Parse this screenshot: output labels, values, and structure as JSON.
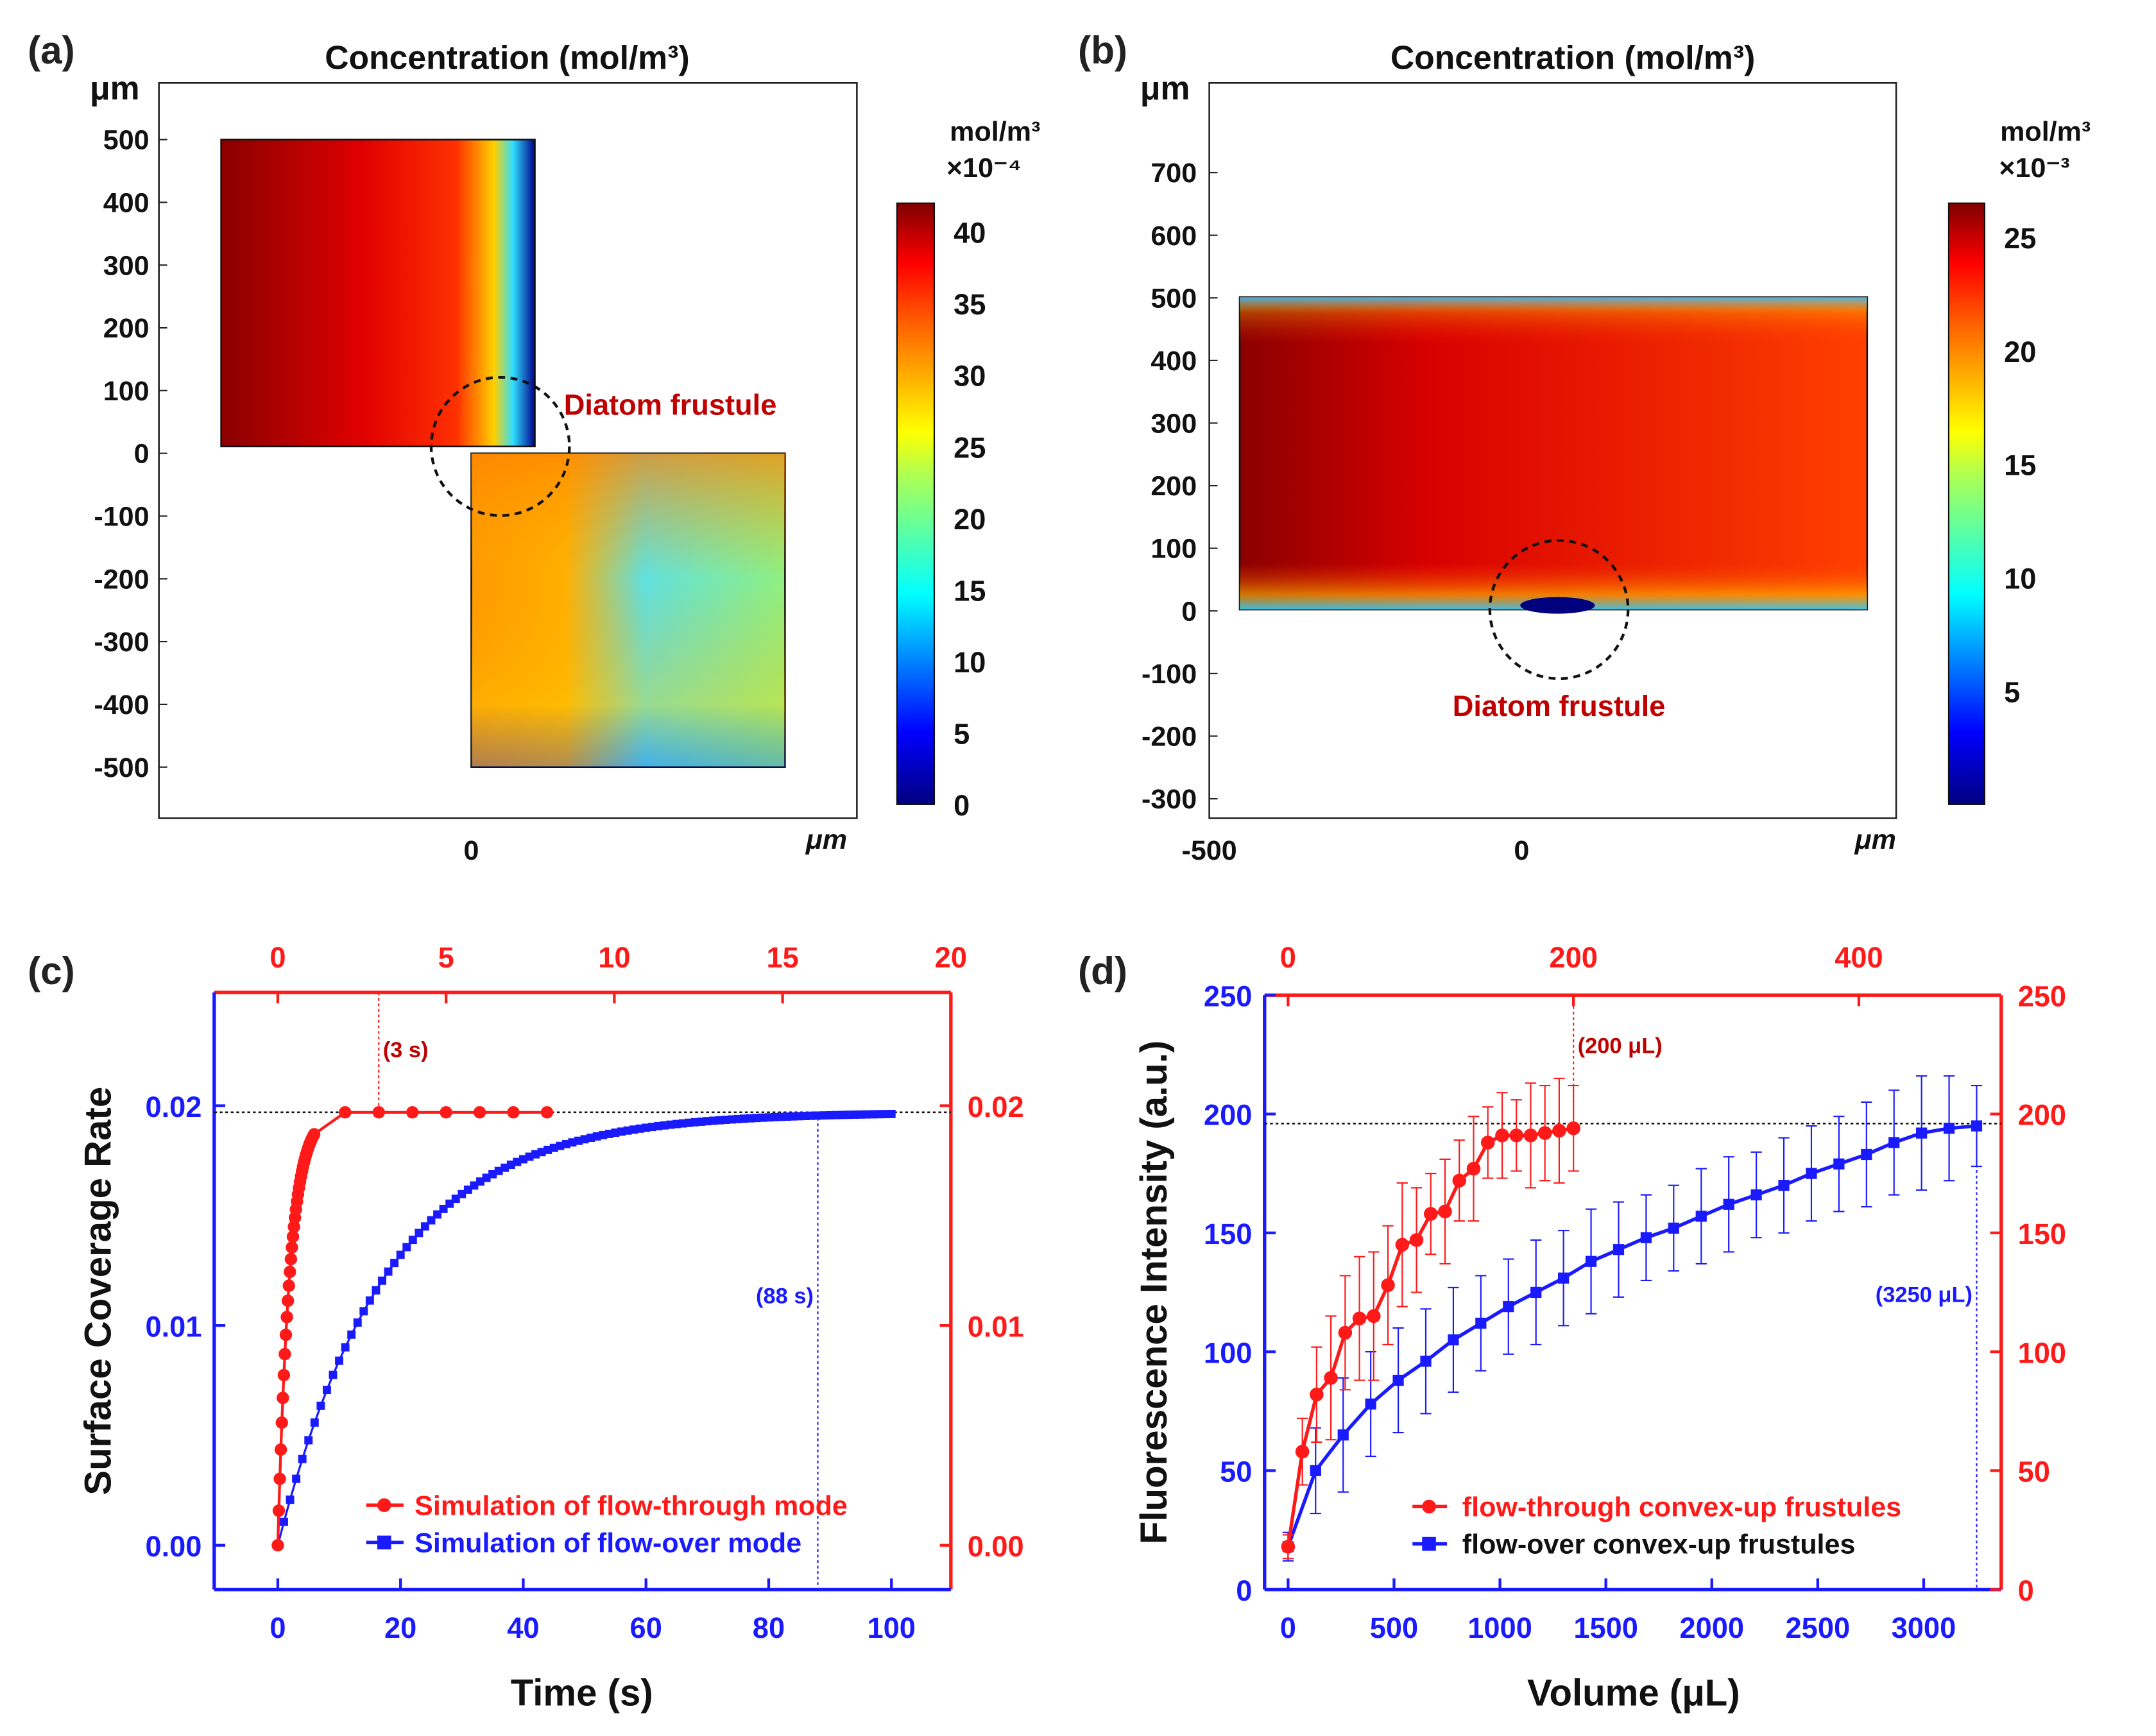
{
  "chart_data": [
    {
      "type": "heatmap",
      "panel_label": "(a)",
      "title": "Concentration (mol/m³)",
      "y_unit": "μm",
      "x_unit": "μm",
      "yticks": [
        500,
        400,
        300,
        200,
        100,
        0,
        -100,
        -200,
        -300,
        -400,
        -500
      ],
      "xticks": [
        0
      ],
      "ylim": [
        -500,
        500
      ],
      "colorbar": {
        "unit": "mol/m³",
        "scale": "×10⁻⁴",
        "ticks": [
          0,
          5,
          10,
          15,
          20,
          25,
          30,
          35,
          40
        ],
        "range": [
          0,
          42
        ]
      },
      "annotation": "Diatom frustule"
    },
    {
      "type": "heatmap",
      "panel_label": "(b)",
      "title": "Concentration (mol/m³)",
      "y_unit": "μm",
      "x_unit": "μm",
      "yticks": [
        700,
        600,
        500,
        400,
        300,
        200,
        100,
        0,
        -100,
        -200,
        -300
      ],
      "xticks": [
        -500,
        0
      ],
      "ylim": [
        -300,
        800
      ],
      "colorbar": {
        "unit": "mol/m³",
        "scale": "×10⁻³",
        "ticks": [
          5,
          10,
          15,
          20,
          25
        ],
        "range": [
          0,
          26.5
        ]
      },
      "annotation": "Diatom frustule"
    },
    {
      "type": "scatter",
      "panel_label": "(c)",
      "xlabel": "Time (s)",
      "ylabel": "Surface Coverage Rate",
      "xticks_bottom": [
        0,
        20,
        40,
        60,
        80,
        100
      ],
      "xticks_top": [
        0,
        5,
        10,
        15,
        20
      ],
      "yticks": [
        "0.00",
        "0.01",
        "0.02"
      ],
      "yticks_right": [
        "0.00",
        "0.01",
        "0.02"
      ],
      "plateau": 0.0197,
      "annotations": {
        "top": "(3 s)",
        "top_x": 3,
        "bottom": "(88 s)",
        "bottom_x": 88
      },
      "series": [
        {
          "name": "Simulation of flow-through mode",
          "axis": "top",
          "color": "#ff1a1a",
          "marker": "circle",
          "tau": 0.36,
          "x_dense_max": 1.1,
          "x_sparse": [
            2,
            3,
            4,
            5,
            6,
            7,
            8
          ],
          "plateau": 0.0197
        },
        {
          "name": "Simulation of flow-over mode",
          "axis": "bottom",
          "color": "#1a1aff",
          "marker": "square",
          "tau": 18,
          "x_max": 100,
          "plateau": 0.0197
        }
      ]
    },
    {
      "type": "line",
      "panel_label": "(d)",
      "xlabel": "Volume (μL)",
      "ylabel": "Fluorescence Intensity (a.u.)",
      "xticks_bottom": [
        0,
        500,
        1000,
        1500,
        2000,
        2500,
        3000
      ],
      "xticks_top": [
        0,
        200,
        400
      ],
      "yticks": [
        0,
        50,
        100,
        150,
        200,
        250
      ],
      "yticks_right": [
        0,
        50,
        100,
        150,
        200,
        250
      ],
      "plateau": 196,
      "annotations": {
        "top": "(200 μL)",
        "top_x": 200,
        "bottom": "(3250 μL)",
        "bottom_x": 3250
      },
      "series": [
        {
          "name": "flow-through convex-up frustules",
          "axis": "top",
          "color": "#ff1a1a",
          "marker": "circle",
          "x": [
            0,
            10,
            20,
            30,
            40,
            50,
            60,
            70,
            80,
            90,
            100,
            110,
            120,
            130,
            140,
            150,
            160,
            170,
            180,
            190,
            200
          ],
          "y": [
            18,
            58,
            82,
            89,
            108,
            114,
            115,
            128,
            145,
            147,
            158,
            159,
            172,
            177,
            188,
            191,
            191,
            191,
            192,
            193,
            194
          ],
          "err": [
            5,
            14,
            20,
            26,
            24,
            26,
            27,
            25,
            26,
            22,
            17,
            22,
            17,
            22,
            15,
            18,
            15,
            22,
            20,
            22,
            18
          ]
        },
        {
          "name": "flow-over convex-up frustules",
          "axis": "bottom",
          "color": "#1a1aff",
          "marker": "square",
          "x": [
            0,
            130,
            260,
            390,
            520,
            650,
            780,
            910,
            1040,
            1170,
            1300,
            1430,
            1560,
            1690,
            1820,
            1950,
            2080,
            2210,
            2340,
            2470,
            2600,
            2730,
            2860,
            2990,
            3120,
            3250
          ],
          "y": [
            18,
            50,
            65,
            78,
            88,
            96,
            105,
            112,
            119,
            125,
            131,
            138,
            143,
            148,
            152,
            157,
            162,
            166,
            170,
            175,
            179,
            183,
            188,
            192,
            194,
            195
          ],
          "err": [
            6,
            18,
            24,
            22,
            22,
            22,
            22,
            20,
            20,
            22,
            20,
            22,
            20,
            18,
            18,
            20,
            20,
            18,
            20,
            20,
            20,
            22,
            22,
            24,
            22,
            17
          ]
        }
      ]
    }
  ]
}
